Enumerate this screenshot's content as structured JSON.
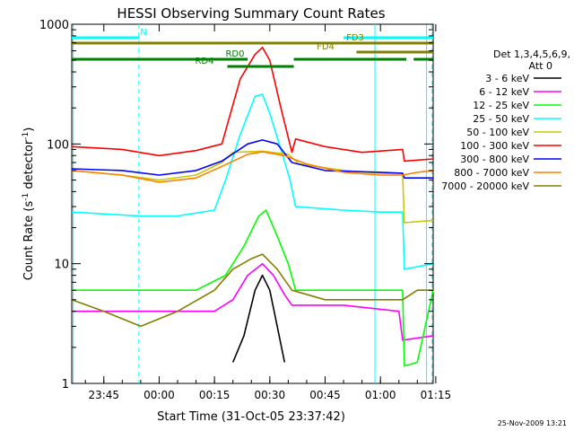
{
  "chart_data": {
    "type": "line",
    "title": "HESSI Observing Summary Count Rates",
    "xlabel": "Start Time (31-Oct-05 23:37:42)",
    "ylabel_prefix": "Count Rate (s",
    "ylabel_sup": "-1",
    "ylabel_mid": " detector",
    "ylabel_suffix": ")",
    "y_scale": "log",
    "ylim": [
      1,
      1000
    ],
    "xlim_minutes": [
      -23.7,
      74.3
    ],
    "x_ticks": [
      {
        "label": "23:45",
        "minutes": -15
      },
      {
        "label": "00:00",
        "minutes": 0
      },
      {
        "label": "00:15",
        "minutes": 15
      },
      {
        "label": "00:30",
        "minutes": 30
      },
      {
        "label": "00:45",
        "minutes": 45
      },
      {
        "label": "01:00",
        "minutes": 60
      },
      {
        "label": "01:15",
        "minutes": 75
      }
    ],
    "y_ticks": [
      {
        "label": "1",
        "value": 1
      },
      {
        "label": "10",
        "value": 10
      },
      {
        "label": "100",
        "value": 100
      },
      {
        "label": "1000",
        "value": 1000
      }
    ],
    "legend_placement": "right",
    "legend_header": [
      "Det 1,3,4,5,6,9,",
      "Att 0"
    ],
    "date_stamp": "25-Nov-2009 13:21",
    "series": [
      {
        "name": "3 - 6 keV",
        "color": "#000000",
        "points": [
          [
            20,
            1.5
          ],
          [
            23,
            2.5
          ],
          [
            26,
            6
          ],
          [
            28,
            8
          ],
          [
            30,
            6
          ],
          [
            32,
            3
          ],
          [
            34,
            1.5
          ]
        ]
      },
      {
        "name": "6 - 12 keV",
        "color": "#ff00ff",
        "points": [
          [
            -23.7,
            4
          ],
          [
            -5,
            4
          ],
          [
            5,
            4
          ],
          [
            15,
            4
          ],
          [
            20,
            5
          ],
          [
            24,
            8
          ],
          [
            28,
            10
          ],
          [
            31,
            8
          ],
          [
            34,
            5.5
          ],
          [
            36,
            4.5
          ],
          [
            50,
            4.5
          ],
          [
            65,
            4
          ],
          [
            66,
            2.3
          ],
          [
            74.3,
            2.5
          ]
        ]
      },
      {
        "name": "12 - 25 keV",
        "color": "#00ff00",
        "points": [
          [
            -23.7,
            6
          ],
          [
            -5,
            6
          ],
          [
            10,
            6
          ],
          [
            18,
            8
          ],
          [
            23,
            14
          ],
          [
            27,
            25
          ],
          [
            29,
            28
          ],
          [
            32,
            17
          ],
          [
            35,
            10
          ],
          [
            37,
            6
          ],
          [
            50,
            6
          ],
          [
            66,
            6
          ],
          [
            66.5,
            1.4
          ],
          [
            70,
            1.5
          ],
          [
            74.3,
            6
          ]
        ]
      },
      {
        "name": "25 - 50 keV",
        "color": "#00ffff",
        "points": [
          [
            -23.7,
            27
          ],
          [
            -5,
            25
          ],
          [
            5,
            25
          ],
          [
            15,
            28
          ],
          [
            18,
            50
          ],
          [
            22,
            120
          ],
          [
            26,
            250
          ],
          [
            28,
            260
          ],
          [
            30,
            180
          ],
          [
            33,
            90
          ],
          [
            35.5,
            50
          ],
          [
            37,
            30
          ],
          [
            50,
            28
          ],
          [
            60,
            27
          ],
          [
            66,
            27
          ],
          [
            66.5,
            9
          ],
          [
            74.3,
            10
          ]
        ]
      },
      {
        "name": "50 - 100 keV",
        "color": "#c8c800",
        "points": [
          [
            -23.7,
            60
          ],
          [
            -10,
            55
          ],
          [
            0,
            50
          ],
          [
            10,
            55
          ],
          [
            17,
            70
          ],
          [
            20,
            85
          ],
          [
            28,
            87
          ],
          [
            35,
            82
          ],
          [
            38,
            68
          ],
          [
            50,
            60
          ],
          [
            60,
            57
          ],
          [
            66,
            57
          ],
          [
            66.5,
            22
          ],
          [
            74.3,
            23
          ]
        ]
      },
      {
        "name": "100 - 300 keV",
        "color": "#ff0000",
        "points": [
          [
            -23.7,
            95
          ],
          [
            -10,
            90
          ],
          [
            0,
            80
          ],
          [
            10,
            88
          ],
          [
            17,
            100
          ],
          [
            22,
            350
          ],
          [
            26,
            560
          ],
          [
            28,
            640
          ],
          [
            30,
            500
          ],
          [
            33,
            200
          ],
          [
            36,
            85
          ],
          [
            37,
            110
          ],
          [
            45,
            95
          ],
          [
            55,
            85
          ],
          [
            66,
            90
          ],
          [
            66.5,
            72
          ],
          [
            74.3,
            75
          ]
        ]
      },
      {
        "name": "300 - 800 keV",
        "color": "#0000ff",
        "points": [
          [
            -23.7,
            62
          ],
          [
            -10,
            60
          ],
          [
            0,
            55
          ],
          [
            10,
            60
          ],
          [
            17,
            72
          ],
          [
            24,
            100
          ],
          [
            28,
            108
          ],
          [
            32,
            100
          ],
          [
            36,
            70
          ],
          [
            45,
            60
          ],
          [
            60,
            58
          ],
          [
            66,
            57
          ],
          [
            66.5,
            52
          ],
          [
            74.3,
            52
          ]
        ]
      },
      {
        "name": "800 - 7000 keV",
        "color": "#ff8000",
        "points": [
          [
            -23.7,
            60
          ],
          [
            -10,
            55
          ],
          [
            0,
            48
          ],
          [
            10,
            52
          ],
          [
            17,
            65
          ],
          [
            24,
            82
          ],
          [
            28,
            86
          ],
          [
            34,
            80
          ],
          [
            40,
            68
          ],
          [
            50,
            58
          ],
          [
            60,
            55
          ],
          [
            66,
            55
          ],
          [
            70,
            58
          ],
          [
            74.3,
            60
          ]
        ]
      },
      {
        "name": "7000 - 20000 keV",
        "color": "#808000",
        "points": [
          [
            -23.7,
            5
          ],
          [
            -15,
            4
          ],
          [
            -5,
            3
          ],
          [
            5,
            4
          ],
          [
            15,
            6
          ],
          [
            20,
            9
          ],
          [
            25,
            11
          ],
          [
            28,
            12
          ],
          [
            32,
            9
          ],
          [
            36,
            6
          ],
          [
            45,
            5
          ],
          [
            60,
            5
          ],
          [
            66,
            5
          ],
          [
            70,
            6
          ],
          [
            74.3,
            6
          ]
        ]
      }
    ],
    "segment_bars": [
      {
        "label": "N",
        "color": "#00ffff",
        "segments": [
          [
            -23.7,
            -5.5
          ],
          [
            50,
            74.3
          ]
        ]
      },
      {
        "label": "FD3",
        "color": "#808000",
        "segments": [
          [
            -23.7,
            74.3
          ]
        ]
      },
      {
        "label": "FD4",
        "color": "#808000",
        "segments": [
          [
            53.5,
            74.3
          ]
        ]
      },
      {
        "label": "RD0",
        "color": "#008000",
        "segments": [
          [
            -23.7,
            24
          ],
          [
            36.5,
            67
          ],
          [
            69,
            74.3
          ]
        ]
      },
      {
        "label": "RD4",
        "color": "#008000",
        "segments": [
          [
            18.5,
            36.5
          ]
        ]
      }
    ],
    "vlines_dashed_minutes": [
      -5.5,
      74
    ],
    "vlines_solid_minutes": [
      -23.3,
      58.5,
      72.5
    ]
  }
}
